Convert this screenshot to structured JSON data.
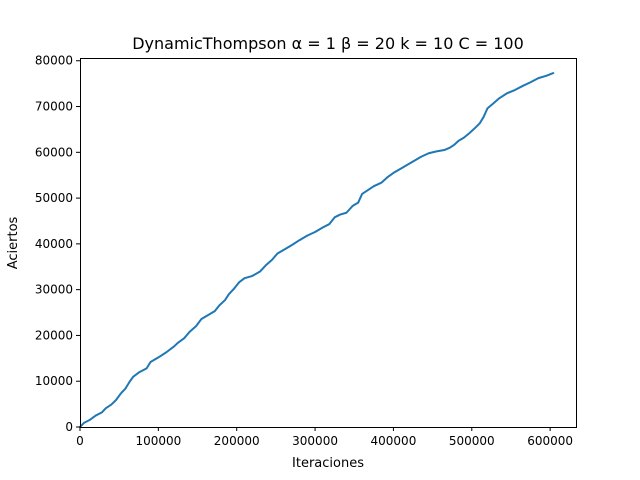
{
  "chart_data": {
    "type": "line",
    "title": "DynamicThompson α = 1 β = 20 k = 10 C = 100",
    "xlabel": "Iteraciones",
    "ylabel": "Aciertos",
    "xlim": [
      0,
      633000
    ],
    "ylim": [
      0,
      80600
    ],
    "xticks": [
      0,
      100000,
      200000,
      300000,
      400000,
      500000,
      600000
    ],
    "xtick_labels": [
      "0",
      "100000",
      "200000",
      "300000",
      "400000",
      "500000",
      "600000"
    ],
    "yticks": [
      0,
      10000,
      20000,
      30000,
      40000,
      50000,
      60000,
      70000,
      80000
    ],
    "ytick_labels": [
      "0",
      "10000",
      "20000",
      "30000",
      "40000",
      "50000",
      "60000",
      "70000",
      "80000"
    ],
    "grid": false,
    "series": [
      {
        "color": "#1f77b4",
        "x": [
          0,
          5000,
          12000,
          20000,
          28000,
          33000,
          40000,
          46000,
          52000,
          58000,
          63000,
          68000,
          75000,
          85000,
          90000,
          100000,
          110000,
          120000,
          125000,
          133000,
          140000,
          148000,
          155000,
          165000,
          172000,
          178000,
          185000,
          190000,
          197000,
          203000,
          210000,
          220000,
          230000,
          237000,
          245000,
          252000,
          260000,
          270000,
          280000,
          290000,
          300000,
          310000,
          318000,
          325000,
          332000,
          340000,
          348000,
          355000,
          360000,
          368000,
          375000,
          385000,
          392000,
          400000,
          410000,
          420000,
          428000,
          435000,
          445000,
          455000,
          465000,
          472000,
          478000,
          483000,
          490000,
          497000,
          504000,
          510000,
          515000,
          520000,
          527000,
          535000,
          545000,
          555000,
          565000,
          575000,
          585000,
          595000,
          604000
        ],
        "y": [
          0,
          900,
          1500,
          2500,
          3200,
          4100,
          4900,
          5900,
          7300,
          8400,
          9800,
          11000,
          11900,
          12800,
          14200,
          15200,
          16300,
          17600,
          18400,
          19400,
          20800,
          22000,
          23600,
          24600,
          25300,
          26600,
          27700,
          29000,
          30300,
          31600,
          32500,
          33000,
          34000,
          35300,
          36500,
          37900,
          38700,
          39700,
          40800,
          41800,
          42600,
          43600,
          44300,
          45800,
          46400,
          46800,
          48300,
          49000,
          50900,
          51800,
          52600,
          53400,
          54500,
          55500,
          56500,
          57500,
          58300,
          59000,
          59800,
          60200,
          60500,
          61000,
          61700,
          62500,
          63200,
          64200,
          65300,
          66300,
          67700,
          69600,
          70600,
          71800,
          72900,
          73600,
          74500,
          75300,
          76200,
          76700,
          77300
        ]
      }
    ]
  }
}
